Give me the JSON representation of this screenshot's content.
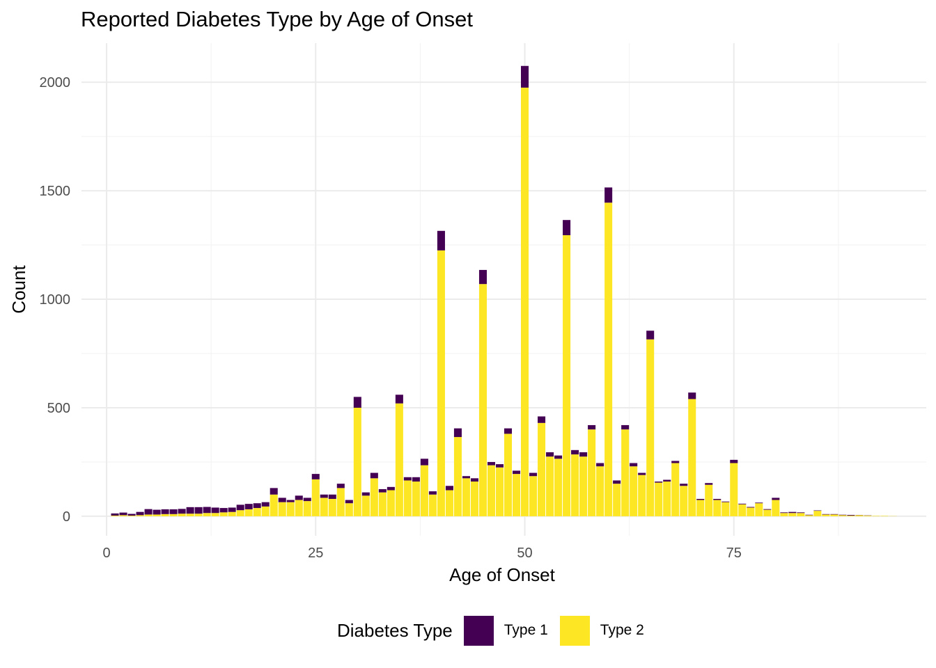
{
  "chart_data": {
    "type": "bar",
    "stacked": true,
    "title": "Reported Diabetes Type by Age of Onset",
    "xlabel": "Age of Onset",
    "ylabel": "Count",
    "xlim": [
      -3,
      98
    ],
    "ylim": [
      -90,
      2180
    ],
    "x_ticks": [
      0,
      25,
      50,
      75
    ],
    "y_ticks": [
      0,
      500,
      1000,
      1500,
      2000
    ],
    "grid": true,
    "legend": {
      "title": "Diabetes Type",
      "position": "bottom",
      "entries": [
        {
          "name": "Type 1",
          "color": "#440154"
        },
        {
          "name": "Type 2",
          "color": "#FDE725"
        }
      ]
    },
    "x": [
      1,
      2,
      3,
      4,
      5,
      6,
      7,
      8,
      9,
      10,
      11,
      12,
      13,
      14,
      15,
      16,
      17,
      18,
      19,
      20,
      21,
      22,
      23,
      24,
      25,
      26,
      27,
      28,
      29,
      30,
      31,
      32,
      33,
      34,
      35,
      36,
      37,
      38,
      39,
      40,
      41,
      42,
      43,
      44,
      45,
      46,
      47,
      48,
      49,
      50,
      51,
      52,
      53,
      54,
      55,
      56,
      57,
      58,
      59,
      60,
      61,
      62,
      63,
      64,
      65,
      66,
      67,
      68,
      69,
      70,
      71,
      72,
      73,
      74,
      75,
      76,
      77,
      78,
      79,
      80,
      81,
      82,
      83,
      84,
      85,
      86,
      87,
      88,
      89,
      90,
      91,
      92,
      93,
      94
    ],
    "series": [
      {
        "name": "Type 2",
        "color": "#FDE725",
        "values": [
          3,
          5,
          3,
          5,
          8,
          8,
          10,
          10,
          12,
          12,
          12,
          15,
          15,
          18,
          20,
          28,
          32,
          38,
          45,
          100,
          65,
          65,
          75,
          70,
          170,
          85,
          80,
          130,
          60,
          500,
          95,
          175,
          110,
          120,
          520,
          165,
          160,
          235,
          100,
          1225,
          120,
          365,
          175,
          160,
          1070,
          235,
          225,
          380,
          195,
          1975,
          185,
          430,
          275,
          265,
          1295,
          285,
          275,
          400,
          230,
          1445,
          150,
          400,
          230,
          190,
          815,
          155,
          160,
          245,
          140,
          540,
          75,
          145,
          75,
          65,
          245,
          55,
          40,
          60,
          30,
          75,
          15,
          15,
          15,
          5,
          25,
          8,
          8,
          5,
          3,
          5,
          3,
          2,
          2,
          1
        ]
      },
      {
        "name": "Type 1",
        "color": "#440154",
        "values": [
          10,
          12,
          8,
          15,
          25,
          22,
          22,
          22,
          22,
          30,
          30,
          28,
          25,
          20,
          20,
          25,
          25,
          22,
          20,
          30,
          20,
          10,
          20,
          15,
          25,
          15,
          20,
          20,
          15,
          50,
          15,
          25,
          15,
          15,
          40,
          15,
          20,
          30,
          15,
          90,
          20,
          40,
          10,
          15,
          65,
          15,
          15,
          25,
          15,
          100,
          15,
          30,
          20,
          15,
          70,
          20,
          20,
          20,
          15,
          70,
          15,
          20,
          15,
          10,
          40,
          5,
          8,
          10,
          10,
          30,
          5,
          8,
          5,
          3,
          15,
          3,
          3,
          3,
          3,
          10,
          3,
          5,
          3,
          2,
          2,
          2,
          2,
          2,
          3,
          1,
          1,
          0,
          0,
          0
        ]
      }
    ]
  }
}
